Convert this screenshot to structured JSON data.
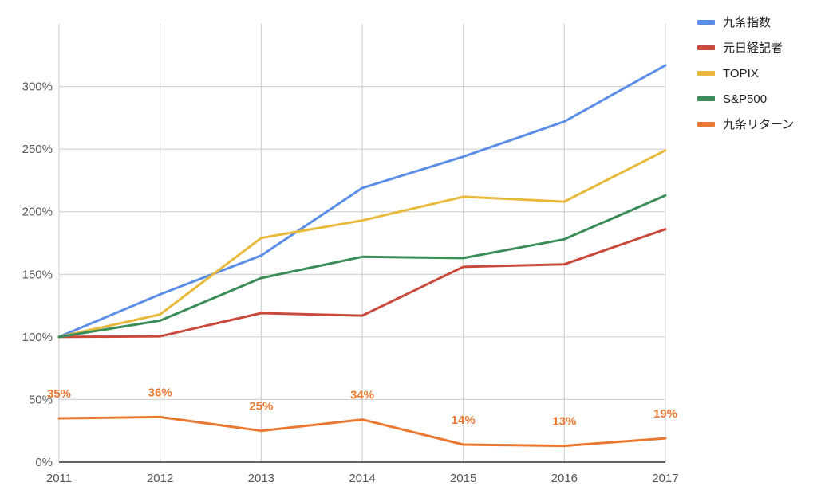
{
  "chart_data": {
    "type": "line",
    "x": [
      "2011",
      "2012",
      "2013",
      "2014",
      "2015",
      "2016",
      "2017"
    ],
    "ylim": [
      0,
      350
    ],
    "y_ticks": [
      0,
      50,
      100,
      150,
      200,
      250,
      300
    ],
    "y_tick_labels": [
      "0%",
      "50%",
      "100%",
      "150%",
      "200%",
      "250%",
      "300%"
    ],
    "grid": true,
    "legend_position": "right",
    "series": [
      {
        "name": "九条指数",
        "color": "#5b8ee6",
        "values": [
          100,
          134,
          165,
          219,
          244,
          272,
          317
        ]
      },
      {
        "name": "元日経記者",
        "color": "#c9493b",
        "values": [
          100,
          100.5,
          119,
          117,
          156,
          158,
          186
        ]
      },
      {
        "name": "TOPIX",
        "color": "#e9b93b",
        "values": [
          100,
          118,
          179,
          193,
          212,
          208,
          249
        ]
      },
      {
        "name": "S&P500",
        "color": "#3b8d57",
        "values": [
          100,
          113,
          147,
          164,
          163,
          178,
          213
        ]
      },
      {
        "name": "九条リターン",
        "color": "#ea7830",
        "values": [
          35,
          36,
          25,
          34,
          14,
          13,
          19
        ],
        "data_labels": [
          "35%",
          "36%",
          "25%",
          "34%",
          "14%",
          "13%",
          "19%"
        ]
      }
    ]
  }
}
